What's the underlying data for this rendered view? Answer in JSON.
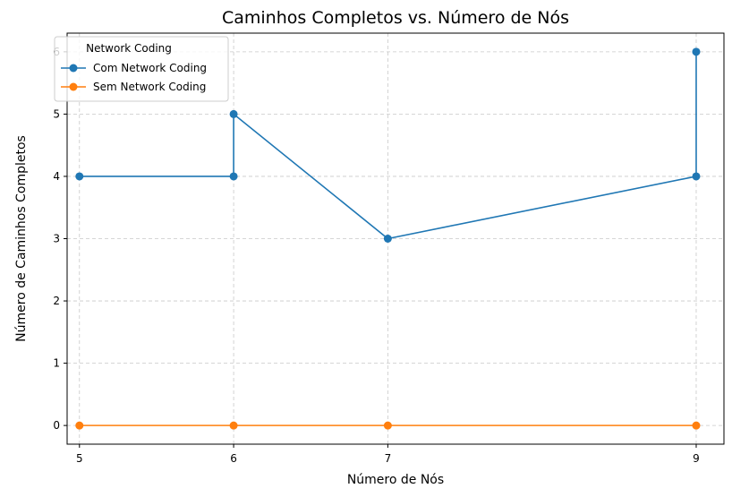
{
  "chart_data": {
    "type": "line",
    "title": "Caminhos Completos vs. Número de Nós",
    "xlabel": "Número de Nós",
    "ylabel": "Número de Caminhos Completos",
    "xlim": [
      4.92,
      9.18
    ],
    "ylim": [
      -0.3,
      6.3
    ],
    "x_ticks": [
      5,
      6,
      7,
      9
    ],
    "y_ticks": [
      0,
      1,
      2,
      3,
      4,
      5,
      6
    ],
    "grid": true,
    "legend": {
      "title": "Network Coding",
      "placement": "top-left"
    },
    "series": [
      {
        "name": "Com Network Coding",
        "color": "#1f77b4",
        "marker": "circle",
        "points": [
          {
            "x": 5,
            "y": 4
          },
          {
            "x": 6,
            "y": 4
          },
          {
            "x": 6,
            "y": 5
          },
          {
            "x": 7,
            "y": 3
          },
          {
            "x": 9,
            "y": 4
          },
          {
            "x": 9,
            "y": 6
          }
        ]
      },
      {
        "name": "Sem Network Coding",
        "color": "#ff7f0e",
        "marker": "circle",
        "points": [
          {
            "x": 5,
            "y": 0
          },
          {
            "x": 6,
            "y": 0
          },
          {
            "x": 7,
            "y": 0
          },
          {
            "x": 9,
            "y": 0
          }
        ]
      }
    ]
  }
}
